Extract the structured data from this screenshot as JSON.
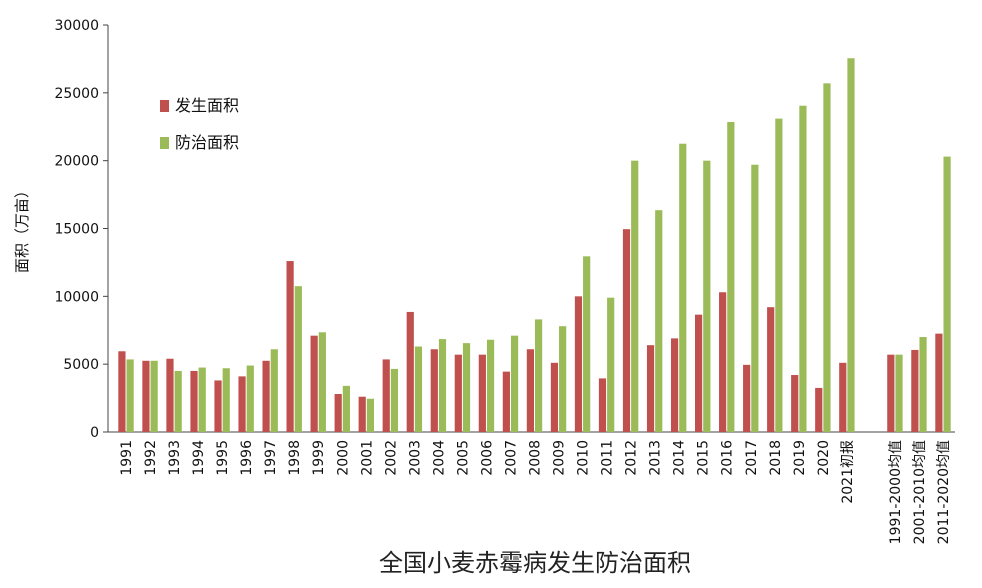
{
  "chart_data": {
    "type": "bar",
    "title": "全国小麦赤霉病发生防治面积",
    "ylabel": "面积（万亩）",
    "xlabel": "",
    "ylim": [
      0,
      30000
    ],
    "yticks": [
      0,
      5000,
      10000,
      15000,
      20000,
      25000,
      30000
    ],
    "grid": false,
    "legend_position": "top-left",
    "categories": [
      "1991",
      "1992",
      "1993",
      "1994",
      "1995",
      "1996",
      "1997",
      "1998",
      "1999",
      "2000",
      "2001",
      "2002",
      "2003",
      "2004",
      "2005",
      "2006",
      "2007",
      "2008",
      "2009",
      "2010",
      "2011",
      "2012",
      "2013",
      "2014",
      "2015",
      "2016",
      "2017",
      "2018",
      "2019",
      "2020",
      "2021初报",
      "",
      "1991-2000均值",
      "2001-2010均值",
      "2011-2020均值"
    ],
    "series": [
      {
        "name": "发生面积",
        "color": "#c0504d",
        "values": [
          5950,
          5250,
          5400,
          4500,
          3800,
          4100,
          5250,
          12600,
          7100,
          2800,
          2600,
          5350,
          8850,
          6100,
          5700,
          5700,
          4450,
          6100,
          5100,
          10000,
          3950,
          14950,
          6400,
          6900,
          8650,
          10300,
          4950,
          9200,
          4200,
          3250,
          5100,
          null,
          5700,
          6050,
          7250
        ]
      },
      {
        "name": "防治面积",
        "color": "#9bbb59",
        "values": [
          5350,
          5250,
          4500,
          4750,
          4700,
          4900,
          6100,
          10750,
          7350,
          3400,
          2450,
          4650,
          6300,
          6850,
          6550,
          6800,
          7100,
          8300,
          7800,
          12950,
          9900,
          20000,
          16350,
          21250,
          20000,
          22850,
          19700,
          23100,
          24050,
          25700,
          27550,
          null,
          5700,
          7000,
          20300
        ]
      }
    ]
  }
}
